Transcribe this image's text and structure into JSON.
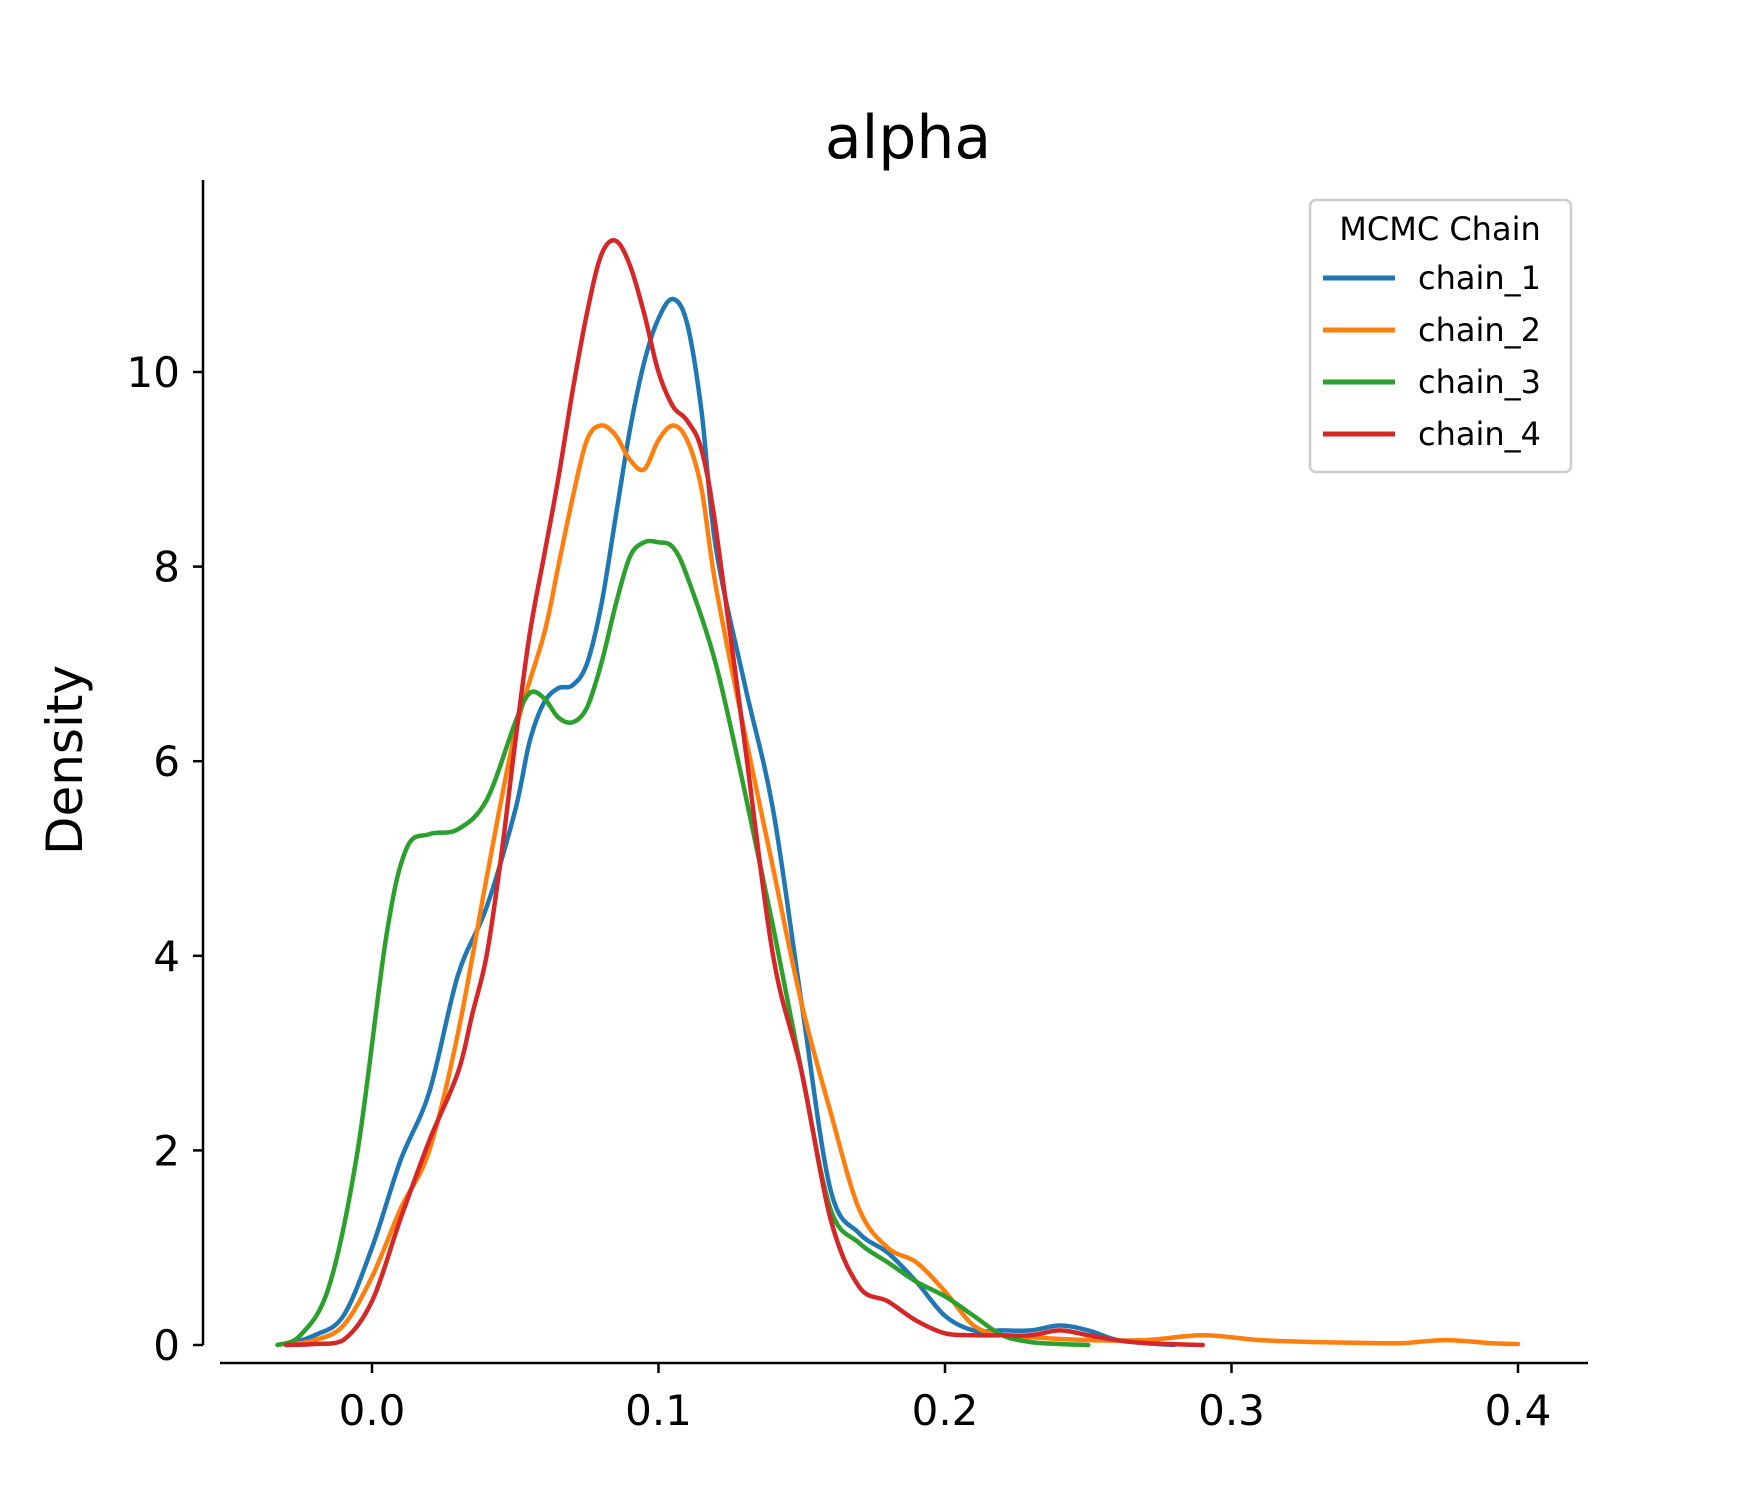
{
  "chart_data": {
    "type": "line",
    "title": "alpha",
    "xlabel": "",
    "ylabel": "Density",
    "xlim": [
      -0.05,
      0.42
    ],
    "ylim": [
      0,
      11.8
    ],
    "xticks": [
      0.0,
      0.1,
      0.2,
      0.3,
      0.4
    ],
    "xtick_labels": [
      "0.0",
      "0.1",
      "0.2",
      "0.3",
      "0.4"
    ],
    "yticks": [
      0,
      2,
      4,
      6,
      8,
      10
    ],
    "ytick_labels": [
      "0",
      "2",
      "4",
      "6",
      "8",
      "10"
    ],
    "grid": false,
    "legend": {
      "title": "MCMC Chain",
      "placement": "top-right"
    },
    "series": [
      {
        "name": "chain_1",
        "color": "#1f77b4",
        "points": [
          [
            -0.03,
            0
          ],
          [
            -0.02,
            0.1
          ],
          [
            -0.01,
            0.3
          ],
          [
            0,
            1.0
          ],
          [
            0.01,
            1.9
          ],
          [
            0.02,
            2.6
          ],
          [
            0.03,
            3.8
          ],
          [
            0.04,
            4.5
          ],
          [
            0.05,
            5.5
          ],
          [
            0.055,
            6.2
          ],
          [
            0.06,
            6.6
          ],
          [
            0.065,
            6.75
          ],
          [
            0.07,
            6.78
          ],
          [
            0.075,
            7.0
          ],
          [
            0.08,
            7.6
          ],
          [
            0.085,
            8.5
          ],
          [
            0.09,
            9.4
          ],
          [
            0.095,
            10.1
          ],
          [
            0.1,
            10.55
          ],
          [
            0.105,
            10.75
          ],
          [
            0.11,
            10.5
          ],
          [
            0.115,
            9.6
          ],
          [
            0.12,
            8.2
          ],
          [
            0.13,
            6.8
          ],
          [
            0.14,
            5.5
          ],
          [
            0.15,
            3.5
          ],
          [
            0.16,
            1.6
          ],
          [
            0.17,
            1.15
          ],
          [
            0.18,
            0.95
          ],
          [
            0.19,
            0.65
          ],
          [
            0.2,
            0.3
          ],
          [
            0.21,
            0.15
          ],
          [
            0.22,
            0.15
          ],
          [
            0.23,
            0.15
          ],
          [
            0.24,
            0.2
          ],
          [
            0.25,
            0.15
          ],
          [
            0.26,
            0.05
          ],
          [
            0.27,
            0.02
          ],
          [
            0.28,
            0
          ]
        ]
      },
      {
        "name": "chain_2",
        "color": "#ff7f0e",
        "points": [
          [
            -0.03,
            0
          ],
          [
            -0.02,
            0.05
          ],
          [
            -0.01,
            0.2
          ],
          [
            0,
            0.7
          ],
          [
            0.01,
            1.4
          ],
          [
            0.02,
            2.0
          ],
          [
            0.03,
            3.2
          ],
          [
            0.04,
            4.8
          ],
          [
            0.05,
            6.3
          ],
          [
            0.06,
            7.3
          ],
          [
            0.065,
            8.0
          ],
          [
            0.07,
            8.7
          ],
          [
            0.075,
            9.3
          ],
          [
            0.08,
            9.45
          ],
          [
            0.085,
            9.35
          ],
          [
            0.09,
            9.1
          ],
          [
            0.095,
            9.0
          ],
          [
            0.1,
            9.3
          ],
          [
            0.105,
            9.45
          ],
          [
            0.11,
            9.3
          ],
          [
            0.115,
            8.8
          ],
          [
            0.12,
            7.8
          ],
          [
            0.13,
            6.3
          ],
          [
            0.14,
            4.9
          ],
          [
            0.15,
            3.5
          ],
          [
            0.16,
            2.4
          ],
          [
            0.17,
            1.4
          ],
          [
            0.18,
            1.0
          ],
          [
            0.19,
            0.85
          ],
          [
            0.2,
            0.55
          ],
          [
            0.21,
            0.2
          ],
          [
            0.22,
            0.1
          ],
          [
            0.23,
            0.08
          ],
          [
            0.25,
            0.05
          ],
          [
            0.27,
            0.05
          ],
          [
            0.29,
            0.1
          ],
          [
            0.31,
            0.05
          ],
          [
            0.33,
            0.03
          ],
          [
            0.35,
            0.02
          ],
          [
            0.36,
            0.02
          ],
          [
            0.375,
            0.05
          ],
          [
            0.39,
            0.02
          ],
          [
            0.4,
            0.01
          ]
        ]
      },
      {
        "name": "chain_3",
        "color": "#2ca02c",
        "points": [
          [
            -0.033,
            0
          ],
          [
            -0.025,
            0.1
          ],
          [
            -0.015,
            0.6
          ],
          [
            -0.005,
            2.0
          ],
          [
            0.005,
            4.2
          ],
          [
            0.012,
            5.1
          ],
          [
            0.02,
            5.25
          ],
          [
            0.03,
            5.3
          ],
          [
            0.04,
            5.6
          ],
          [
            0.05,
            6.4
          ],
          [
            0.055,
            6.7
          ],
          [
            0.06,
            6.65
          ],
          [
            0.065,
            6.45
          ],
          [
            0.07,
            6.4
          ],
          [
            0.075,
            6.55
          ],
          [
            0.08,
            7.0
          ],
          [
            0.085,
            7.6
          ],
          [
            0.09,
            8.1
          ],
          [
            0.095,
            8.25
          ],
          [
            0.1,
            8.25
          ],
          [
            0.105,
            8.2
          ],
          [
            0.11,
            7.9
          ],
          [
            0.12,
            7.0
          ],
          [
            0.13,
            5.7
          ],
          [
            0.14,
            4.3
          ],
          [
            0.15,
            2.8
          ],
          [
            0.16,
            1.4
          ],
          [
            0.17,
            1.05
          ],
          [
            0.18,
            0.85
          ],
          [
            0.19,
            0.65
          ],
          [
            0.2,
            0.5
          ],
          [
            0.21,
            0.3
          ],
          [
            0.22,
            0.1
          ],
          [
            0.23,
            0.03
          ],
          [
            0.24,
            0.01
          ],
          [
            0.25,
            0
          ]
        ]
      },
      {
        "name": "chain_4",
        "color": "#d62728",
        "points": [
          [
            -0.03,
            0
          ],
          [
            -0.02,
            0.01
          ],
          [
            -0.01,
            0.05
          ],
          [
            0,
            0.45
          ],
          [
            0.01,
            1.3
          ],
          [
            0.02,
            2.1
          ],
          [
            0.03,
            2.8
          ],
          [
            0.035,
            3.4
          ],
          [
            0.04,
            4.0
          ],
          [
            0.045,
            5.0
          ],
          [
            0.05,
            6.2
          ],
          [
            0.055,
            7.3
          ],
          [
            0.06,
            8.1
          ],
          [
            0.065,
            8.9
          ],
          [
            0.07,
            9.8
          ],
          [
            0.075,
            10.6
          ],
          [
            0.08,
            11.2
          ],
          [
            0.085,
            11.35
          ],
          [
            0.09,
            11.1
          ],
          [
            0.095,
            10.6
          ],
          [
            0.1,
            10.0
          ],
          [
            0.105,
            9.65
          ],
          [
            0.11,
            9.5
          ],
          [
            0.115,
            9.2
          ],
          [
            0.12,
            8.4
          ],
          [
            0.13,
            6.2
          ],
          [
            0.14,
            4.0
          ],
          [
            0.15,
            2.8
          ],
          [
            0.16,
            1.3
          ],
          [
            0.17,
            0.6
          ],
          [
            0.18,
            0.45
          ],
          [
            0.19,
            0.25
          ],
          [
            0.2,
            0.12
          ],
          [
            0.21,
            0.1
          ],
          [
            0.22,
            0.1
          ],
          [
            0.23,
            0.1
          ],
          [
            0.24,
            0.15
          ],
          [
            0.25,
            0.1
          ],
          [
            0.26,
            0.05
          ],
          [
            0.27,
            0.02
          ],
          [
            0.29,
            0
          ]
        ]
      }
    ]
  }
}
